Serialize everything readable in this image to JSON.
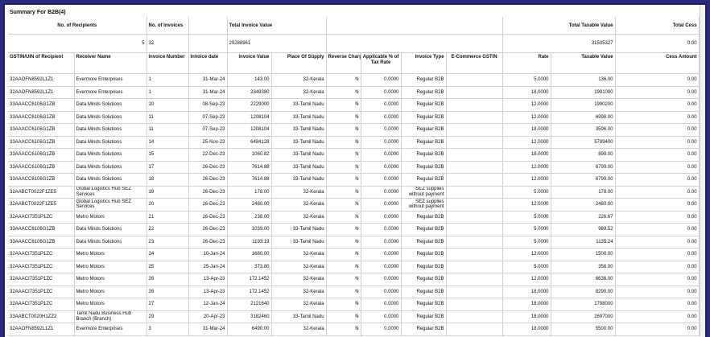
{
  "summary": {
    "title": "Summary For B2B(4)",
    "labels": {
      "recipients": "No. of Recipients",
      "invoices": "No. of Invoices",
      "invoice_value": "Total Invoice Value",
      "taxable_value": "Total Taxable Value",
      "cess": "Total Cess"
    },
    "values": {
      "recipients": "5",
      "invoices": "32",
      "invoice_value": "29288961",
      "taxable_value": "31505327",
      "cess": "0.00"
    }
  },
  "columns": {
    "gstin": "GSTIN/UIN of Recipient",
    "receiver": "Receiver Name",
    "inv_no": "Invoice Number",
    "inv_date": "Invoice date",
    "inv_value": "Invoice Value",
    "pos": "Place Of Supply",
    "reverse": "Reverse Charge",
    "app_pct": "Applicable % of Tax Rate",
    "inv_type": "Invoice Type",
    "ecom": "E-Commerce GSTIN",
    "rate": "Rate",
    "taxable": "Taxable Value",
    "cess": "Cess Amount"
  },
  "rows": [
    {
      "gstin": "32AAOFN8592L1Z1",
      "receiver": "Evermore Enterprises",
      "inv_no": "1",
      "date": "31-Mar-24",
      "value": "143.00",
      "pos": "32-Kerala",
      "rc": "N",
      "app": "0.0000",
      "type": "Regular B2B",
      "ecom": "",
      "rate": "5.0000",
      "taxable": "136.00",
      "cess": "0.00"
    },
    {
      "gstin": "32AAOFN8592L1Z1",
      "receiver": "Evermore Enterprises",
      "inv_no": "1",
      "date": "31-Mar-24",
      "value": "2349380",
      "pos": "32-Kerala",
      "rc": "N",
      "app": "0.0000",
      "type": "Regular B2B",
      "ecom": "",
      "rate": "18.0000",
      "taxable": "1991000",
      "cess": "0.00"
    },
    {
      "gstin": "33AAACC6106G1ZB",
      "receiver": "Data Minds Solutions",
      "inv_no": "10",
      "date": "08-Sep-23",
      "value": "2229000",
      "pos": "33-Tamil Nadu",
      "rc": "N",
      "app": "0.0000",
      "type": "Regular B2B",
      "ecom": "",
      "rate": "12.0000",
      "taxable": "1990200",
      "cess": "0.00"
    },
    {
      "gstin": "33AAACC6106G1ZB",
      "receiver": "Data Minds Solutions",
      "inv_no": "11",
      "date": "07-Sep-23",
      "value": "1208104",
      "pos": "33-Tamil Nadu",
      "rc": "N",
      "app": "0.0000",
      "type": "Regular B2B",
      "ecom": "",
      "rate": "12.0000",
      "taxable": "6998.00",
      "cess": "0.00"
    },
    {
      "gstin": "33AAACC6106G1ZB",
      "receiver": "Data Minds Solutions",
      "inv_no": "11",
      "date": "07-Sep-23",
      "value": "1208104",
      "pos": "33-Tamil Nadu",
      "rc": "N",
      "app": "0.0000",
      "type": "Regular B2B",
      "ecom": "",
      "rate": "18.0000",
      "taxable": "3596.00",
      "cess": "0.00"
    },
    {
      "gstin": "33AAACC6106G1ZB",
      "receiver": "Data Minds Solutions",
      "inv_no": "14",
      "date": "25-Nov-23",
      "value": "6484128",
      "pos": "33-Tamil Nadu",
      "rc": "N",
      "app": "0.0000",
      "type": "Regular B2B",
      "ecom": "",
      "rate": "12.0000",
      "taxable": "5789400",
      "cess": "0.00"
    },
    {
      "gstin": "33AAACC6106G1ZB",
      "receiver": "Data Minds Solutions",
      "inv_no": "15",
      "date": "22-Dec-23",
      "value": "1060.82",
      "pos": "33-Tamil Nadu",
      "rc": "N",
      "app": "0.0000",
      "type": "Regular B2B",
      "ecom": "",
      "rate": "18.0000",
      "taxable": "899.00",
      "cess": "0.00"
    },
    {
      "gstin": "33AAACC6106G1ZB",
      "receiver": "Data Minds Solutions",
      "inv_no": "17",
      "date": "26-Dec-23",
      "value": "7614.88",
      "pos": "33-Tamil Nadu",
      "rc": "N",
      "app": "0.0000",
      "type": "Regular B2B",
      "ecom": "",
      "rate": "12.0000",
      "taxable": "6799.00",
      "cess": "0.00"
    },
    {
      "gstin": "33AAACC6106G1ZB",
      "receiver": "Data Minds Solutions",
      "inv_no": "18",
      "date": "26-Dec-23",
      "value": "7614.88",
      "pos": "33-Tamil Nadu",
      "rc": "N",
      "app": "0.0000",
      "type": "Regular B2B",
      "ecom": "",
      "rate": "12.0000",
      "taxable": "6799.00",
      "cess": "0.00"
    },
    {
      "gstin": "32AABCT0022F1ZE5",
      "receiver": "Global Logistics Hub SEZ Services",
      "inv_no": "19",
      "date": "26-Dec-23",
      "value": "178.00",
      "pos": "32-Kerala",
      "rc": "N",
      "app": "0.0000",
      "type": "SEZ supplies without payment",
      "ecom": "",
      "rate": "5.0000",
      "taxable": "178.00",
      "cess": "0.00"
    },
    {
      "gstin": "32AABCT0022F1ZE5",
      "receiver": "Global Logistics Hub SEZ Services",
      "inv_no": "20",
      "date": "26-Dec-23",
      "value": "2480.00",
      "pos": "32-Kerala",
      "rc": "N",
      "app": "0.0000",
      "type": "SEZ supplies without payment",
      "ecom": "",
      "rate": "12.0000",
      "taxable": "2480.00",
      "cess": "0.00"
    },
    {
      "gstin": "32AAACI7351P1ZC",
      "receiver": "Metro Motors",
      "inv_no": "21",
      "date": "26-Dec-23",
      "value": "238.00",
      "pos": "32-Kerala",
      "rc": "N",
      "app": "0.0000",
      "type": "Regular B2B",
      "ecom": "",
      "rate": "5.0000",
      "taxable": "226.67",
      "cess": "0.00"
    },
    {
      "gstin": "33AAACC6106G1ZB",
      "receiver": "Data Minds Solutions",
      "inv_no": "22",
      "date": "26-Dec-23",
      "value": "1039.00",
      "pos": "33-Tamil Nadu",
      "rc": "N",
      "app": "0.0000",
      "type": "Regular B2B",
      "ecom": "",
      "rate": "5.0000",
      "taxable": "989.52",
      "cess": "0.00"
    },
    {
      "gstin": "33AAACC6106G1ZB",
      "receiver": "Data Minds Solutions",
      "inv_no": "23",
      "date": "26-Dec-23",
      "value": "1193.19",
      "pos": "33-Tamil Nadu",
      "rc": "N",
      "app": "0.0000",
      "type": "Regular B2B",
      "ecom": "",
      "rate": "5.0000",
      "taxable": "1135.24",
      "cess": "0.00"
    },
    {
      "gstin": "32AAACI7351P1ZC",
      "receiver": "Metro Motors",
      "inv_no": "24",
      "date": "10-Jan-24",
      "value": "1680.00",
      "pos": "32-Kerala",
      "rc": "N",
      "app": "0.0000",
      "type": "Regular B2B",
      "ecom": "",
      "rate": "12.0000",
      "taxable": "1500.00",
      "cess": "0.00"
    },
    {
      "gstin": "32AAACI7351P1ZC",
      "receiver": "Metro Motors",
      "inv_no": "25",
      "date": "25-Jan-24",
      "value": "373.80",
      "pos": "32-Kerala",
      "rc": "N",
      "app": "0.0000",
      "type": "Regular B2B",
      "ecom": "",
      "rate": "5.0000",
      "taxable": "356.00",
      "cess": "0.00"
    },
    {
      "gstin": "32AAACI7351P1ZC",
      "receiver": "Metro Motors",
      "inv_no": "26",
      "date": "13-Apr-23",
      "value": "172.1452",
      "pos": "32-Kerala",
      "rc": "N",
      "app": "0.0000",
      "type": "Regular B2B",
      "ecom": "",
      "rate": "12.0000",
      "taxable": "6636.00",
      "cess": "0.00"
    },
    {
      "gstin": "32AAACI7351P1ZC",
      "receiver": "Metro Motors",
      "inv_no": "26",
      "date": "13-Apr-23",
      "value": "172.1452",
      "pos": "32-Kerala",
      "rc": "N",
      "app": "0.0000",
      "type": "Regular B2B",
      "ecom": "",
      "rate": "18.0000",
      "taxable": "8290.00",
      "cess": "0.00"
    },
    {
      "gstin": "32AAACI7351P1ZC",
      "receiver": "Metro Motors",
      "inv_no": "27",
      "date": "12-Jan-24",
      "value": "2121640",
      "pos": "32-Kerala",
      "rc": "N",
      "app": "0.0000",
      "type": "Regular B2B",
      "ecom": "",
      "rate": "18.0000",
      "taxable": "1798000",
      "cess": "0.00"
    },
    {
      "gstin": "33AABCT0020H1ZZ2",
      "receiver": "Tamil Nadu Business Hub Branch (Branch)",
      "inv_no": "29",
      "date": "20-Apr-23",
      "value": "3182460",
      "pos": "33-Tamil Nadu",
      "rc": "N",
      "app": "0.0000",
      "type": "Regular B2B",
      "ecom": "",
      "rate": "18.0000",
      "taxable": "2697000",
      "cess": "0.00"
    },
    {
      "gstin": "32AAOFN8592L1Z1",
      "receiver": "Evermore Enterprises",
      "inv_no": "3",
      "date": "31-Mar-24",
      "value": "6490.00",
      "pos": "32-Kerala",
      "rc": "N",
      "app": "0.0000",
      "type": "Regular B2B",
      "ecom": "",
      "rate": "18.0000",
      "taxable": "5500.00",
      "cess": "0.00"
    }
  ]
}
